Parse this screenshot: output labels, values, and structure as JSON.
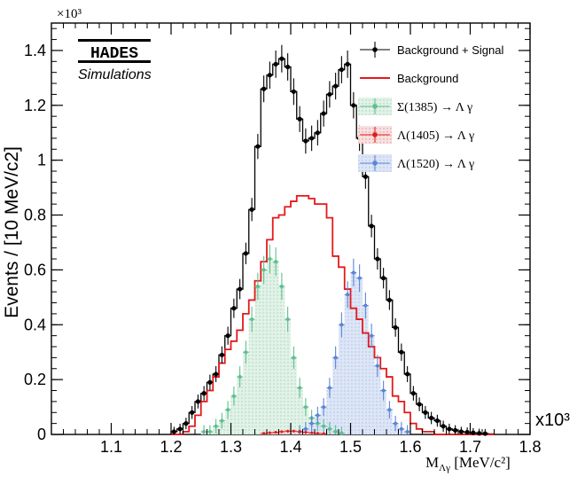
{
  "chart_data": {
    "type": "line",
    "title": "",
    "logo": {
      "name": "HADES",
      "subtitle": "Simulations"
    },
    "xlabel": "M",
    "xlabel_subscript": "Λγ",
    "xlabel_unit": "[MeV/c²]",
    "ylabel": "Events / [10 MeV/c2]",
    "x_multiplier_label": "x10³",
    "y_multiplier_label": "×10³",
    "xlim": [
      1.0,
      1.8
    ],
    "ylim": [
      0,
      1.5
    ],
    "x_ticks": [
      "1.1",
      "1.2",
      "1.3",
      "1.4",
      "1.5",
      "1.6",
      "1.7",
      "1.8"
    ],
    "y_ticks": [
      "0",
      "0.2",
      "0.4",
      "0.6",
      "0.8",
      "1",
      "1.2",
      "1.4"
    ],
    "bin_width": 0.01,
    "legend_position": "top-right",
    "legend": [
      {
        "label": "Background + Signal",
        "style": "marker-black"
      },
      {
        "label": "Background",
        "style": "line-red"
      },
      {
        "label": "Σ(1385) → Λ γ",
        "style": "marker-green"
      },
      {
        "label": "Λ(1405) → Λ γ",
        "style": "marker-red"
      },
      {
        "label": "Λ(1520) → Λ γ",
        "style": "marker-blue"
      }
    ],
    "colors": {
      "total": "#000000",
      "background": "#e3191b",
      "sigma1385": "#5dbf8f",
      "lambda1405": "#e3191b",
      "lambda1520": "#5b84d6",
      "sigma_fill": "#e2f2e8",
      "lambda1520_fill": "#dde6f6"
    },
    "x": [
      1.205,
      1.215,
      1.225,
      1.235,
      1.245,
      1.255,
      1.265,
      1.275,
      1.285,
      1.295,
      1.305,
      1.315,
      1.325,
      1.335,
      1.345,
      1.355,
      1.365,
      1.375,
      1.385,
      1.395,
      1.405,
      1.415,
      1.425,
      1.435,
      1.445,
      1.455,
      1.465,
      1.475,
      1.485,
      1.495,
      1.505,
      1.515,
      1.525,
      1.535,
      1.545,
      1.555,
      1.565,
      1.575,
      1.585,
      1.595,
      1.605,
      1.615,
      1.625,
      1.635,
      1.645,
      1.655,
      1.665,
      1.675,
      1.685,
      1.695,
      1.705,
      1.715,
      1.725,
      1.735
    ],
    "series": [
      {
        "name": "Background + Signal",
        "values": [
          0.01,
          0.02,
          0.04,
          0.08,
          0.12,
          0.15,
          0.19,
          0.22,
          0.29,
          0.36,
          0.46,
          0.53,
          0.66,
          0.82,
          1.05,
          1.26,
          1.31,
          1.35,
          1.37,
          1.34,
          1.25,
          1.15,
          1.07,
          1.08,
          1.1,
          1.17,
          1.24,
          1.27,
          1.33,
          1.35,
          1.2,
          1.08,
          0.94,
          0.76,
          0.64,
          0.57,
          0.49,
          0.39,
          0.3,
          0.22,
          0.15,
          0.11,
          0.08,
          0.06,
          0.05,
          0.03,
          0.02,
          0.015,
          0.01,
          0.008,
          0.006,
          0.004,
          0.003,
          0.002
        ]
      },
      {
        "name": "Background",
        "values": [
          0.0,
          0.0,
          0.01,
          0.03,
          0.07,
          0.12,
          0.16,
          0.21,
          0.26,
          0.31,
          0.34,
          0.38,
          0.44,
          0.49,
          0.56,
          0.63,
          0.71,
          0.79,
          0.8,
          0.83,
          0.85,
          0.87,
          0.87,
          0.86,
          0.84,
          0.84,
          0.79,
          0.65,
          0.61,
          0.53,
          0.46,
          0.42,
          0.37,
          0.32,
          0.28,
          0.24,
          0.21,
          0.14,
          0.12,
          0.08,
          0.04,
          0.02,
          0.01,
          0.01,
          0.0,
          0.0,
          0.0,
          0.0,
          0.0,
          0.0,
          0.0,
          0.0,
          0.0,
          0.0
        ]
      },
      {
        "name": "Σ(1385) → Λ γ",
        "values": [
          0,
          0,
          0,
          0,
          0,
          0.01,
          0.01,
          0.03,
          0.05,
          0.09,
          0.14,
          0.21,
          0.3,
          0.42,
          0.54,
          0.6,
          0.64,
          0.63,
          0.54,
          0.42,
          0.28,
          0.17,
          0.1,
          0.06,
          0.04,
          0.03,
          0.02,
          0.01,
          0.005,
          0,
          0,
          0,
          0,
          0,
          0,
          0,
          0,
          0,
          0,
          0,
          0,
          0,
          0,
          0,
          0,
          0,
          0,
          0,
          0,
          0,
          0,
          0,
          0,
          0
        ]
      },
      {
        "name": "Λ(1405) → Λ γ",
        "values": [
          0,
          0,
          0,
          0,
          0,
          0,
          0,
          0,
          0,
          0,
          0,
          0,
          0,
          0,
          0,
          0.004,
          0.006,
          0.008,
          0.01,
          0.012,
          0.012,
          0.01,
          0.008,
          0.006,
          0.004,
          0.003,
          0.002,
          0.001,
          0,
          0,
          0,
          0,
          0,
          0,
          0,
          0,
          0,
          0,
          0,
          0,
          0,
          0,
          0,
          0,
          0,
          0,
          0,
          0,
          0,
          0,
          0,
          0,
          0,
          0
        ]
      },
      {
        "name": "Λ(1520) → Λ γ",
        "values": [
          0,
          0,
          0,
          0,
          0,
          0,
          0,
          0,
          0,
          0,
          0,
          0,
          0,
          0,
          0,
          0,
          0,
          0,
          0,
          0,
          0,
          0.01,
          0.02,
          0.04,
          0.07,
          0.1,
          0.17,
          0.28,
          0.4,
          0.51,
          0.59,
          0.57,
          0.47,
          0.36,
          0.25,
          0.16,
          0.09,
          0.04,
          0.02,
          0.01,
          0,
          0,
          0,
          0,
          0,
          0,
          0,
          0,
          0,
          0,
          0,
          0,
          0,
          0
        ]
      }
    ]
  }
}
